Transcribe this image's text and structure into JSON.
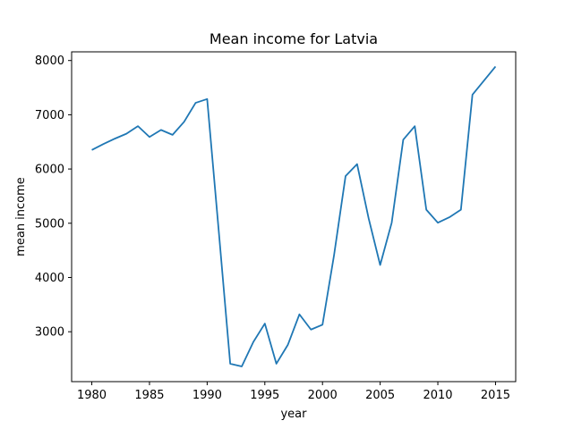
{
  "chart_data": {
    "type": "line",
    "title": "Mean income for Latvia",
    "xlabel": "year",
    "ylabel": "mean income",
    "xlim": [
      1978.25,
      2016.75
    ],
    "ylim": [
      2080,
      8160
    ],
    "xticks": [
      1980,
      1985,
      1990,
      1995,
      2000,
      2005,
      2010,
      2015
    ],
    "xtick_labels": [
      "1980",
      "1985",
      "1990",
      "1995",
      "2000",
      "2005",
      "2010",
      "2015"
    ],
    "yticks": [
      3000,
      4000,
      5000,
      6000,
      7000,
      8000
    ],
    "ytick_labels": [
      "3000",
      "4000",
      "5000",
      "6000",
      "7000",
      "8000"
    ],
    "grid": false,
    "color": "#1f77b4",
    "x": [
      1980,
      1981,
      1982,
      1983,
      1984,
      1985,
      1986,
      1987,
      1988,
      1989,
      1990,
      1991,
      1992,
      1993,
      1994,
      1995,
      1996,
      1997,
      1998,
      1999,
      2000,
      2001,
      2002,
      2003,
      2004,
      2005,
      2006,
      2007,
      2008,
      2009,
      2010,
      2011,
      2012,
      2013,
      2014,
      2015
    ],
    "y": [
      6350,
      6460,
      6560,
      6650,
      6790,
      6590,
      6720,
      6630,
      6870,
      7220,
      7290,
      4870,
      2410,
      2360,
      2810,
      3150,
      2410,
      2760,
      3320,
      3040,
      3130,
      4410,
      5870,
      6090,
      5090,
      4230,
      5010,
      6540,
      6790,
      5250,
      5010,
      5110,
      5250,
      7370,
      7630,
      7890
    ]
  }
}
